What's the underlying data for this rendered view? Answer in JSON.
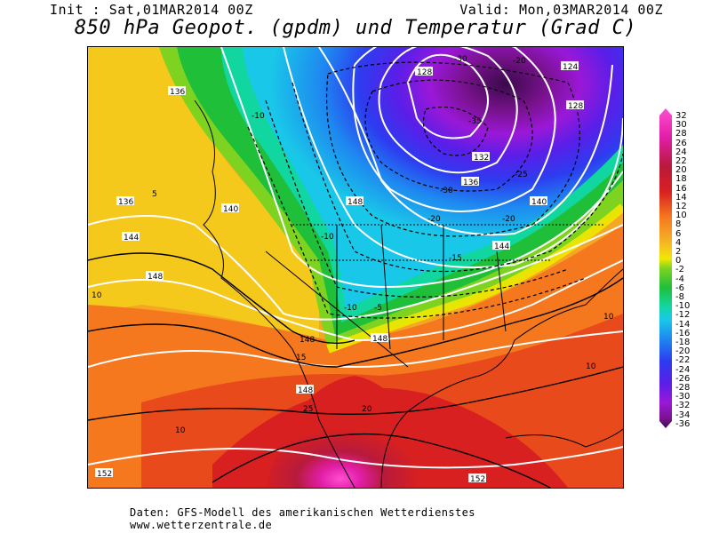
{
  "header": {
    "init": "Init : Sat,01MAR2014 00Z",
    "valid": "Valid: Mon,03MAR2014 00Z",
    "title": "850 hPa Geopot. (gpdm) und Temperatur (Grad C)"
  },
  "legend": {
    "ticks": [
      "32",
      "30",
      "28",
      "26",
      "24",
      "22",
      "20",
      "18",
      "16",
      "14",
      "12",
      "10",
      "8",
      "6",
      "4",
      "2",
      "0",
      "-2",
      "-4",
      "-6",
      "-8",
      "-10",
      "-12",
      "-14",
      "-16",
      "-18",
      "-20",
      "-22",
      "-24",
      "-26",
      "-28",
      "-30",
      "-32",
      "-34",
      "-36"
    ],
    "colors": {
      "32": "#ff4fd0",
      "28": "#e21ea8",
      "24": "#b81a3c",
      "20": "#d82020",
      "16": "#e84a1c",
      "12": "#f5781f",
      "8": "#f5a623",
      "4": "#f5c81c",
      "2": "#f0e800",
      "0": "#7ed321",
      "-4": "#1fbf3a",
      "-8": "#12d6a0",
      "-12": "#19c8e8",
      "-16": "#1e88f0",
      "-20": "#2d3cf0",
      "-24": "#5a1ee8",
      "-28": "#9a18d8",
      "-32": "#7a128f",
      "-36": "#3a0a4a"
    }
  },
  "map_labels": {
    "geopotential": [
      "136",
      "136",
      "140",
      "144",
      "148",
      "148",
      "144",
      "148",
      "148",
      "140",
      "136",
      "132",
      "128",
      "128",
      "124",
      "152",
      "152",
      "148"
    ],
    "temperature": [
      "-30",
      "-35",
      "-20",
      "-30",
      "-25",
      "-20",
      "-20",
      "-15",
      "-10",
      "-5",
      "5",
      "10",
      "15",
      "20",
      "25",
      "-10",
      "-10",
      "10",
      "10",
      "10"
    ]
  },
  "footer": {
    "line1": "Daten: GFS-Modell des amerikanischen Wetterdienstes",
    "line2": "www.wetterzentrale.de"
  }
}
